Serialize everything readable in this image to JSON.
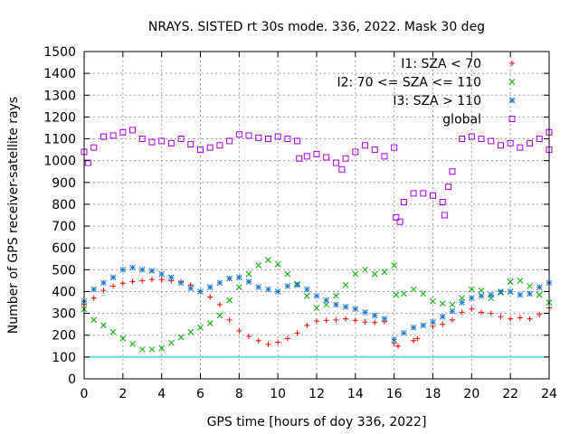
{
  "chart_data": {
    "type": "scatter",
    "title": "NRAYS. SISTED rt 30s mode. 336, 2022. Mask 30 deg",
    "xlabel": "GPS time [hours of doy 336, 2022]",
    "ylabel": "Number of GPS receiver-satellite rays",
    "xlim": [
      0,
      24
    ],
    "ylim": [
      0,
      1500
    ],
    "x_ticks": [
      0,
      2,
      4,
      6,
      8,
      10,
      12,
      14,
      16,
      18,
      20,
      22,
      24
    ],
    "y_ticks": [
      0,
      100,
      200,
      300,
      400,
      500,
      600,
      700,
      800,
      900,
      1000,
      1100,
      1200,
      1300,
      1400,
      1500
    ],
    "grid": true,
    "legend_position": "top-right",
    "reference_line": {
      "y": 100,
      "color": "#00c8c8"
    },
    "series": [
      {
        "name": "I1: SZA < 70",
        "marker": "+",
        "color": "#ff0000",
        "points": [
          [
            0,
            340
          ],
          [
            0.5,
            370
          ],
          [
            1,
            405
          ],
          [
            1.5,
            425
          ],
          [
            2,
            438
          ],
          [
            2.5,
            445
          ],
          [
            3,
            450
          ],
          [
            3.5,
            455
          ],
          [
            4,
            455
          ],
          [
            4.5,
            450
          ],
          [
            5,
            445
          ],
          [
            5.5,
            430
          ],
          [
            6,
            400
          ],
          [
            6.5,
            375
          ],
          [
            7,
            340
          ],
          [
            7.5,
            270
          ],
          [
            8,
            220
          ],
          [
            8.5,
            195
          ],
          [
            9,
            175
          ],
          [
            9.5,
            158
          ],
          [
            10,
            168
          ],
          [
            10.5,
            185
          ],
          [
            11,
            210
          ],
          [
            11.5,
            245
          ],
          [
            12,
            265
          ],
          [
            12.5,
            268
          ],
          [
            13,
            270
          ],
          [
            13.5,
            275
          ],
          [
            14,
            268
          ],
          [
            14.5,
            260
          ],
          [
            15,
            258
          ],
          [
            15.5,
            262
          ],
          [
            16,
            165
          ],
          [
            16.2,
            150
          ],
          [
            17,
            175
          ],
          [
            17.2,
            185
          ],
          [
            18,
            240
          ],
          [
            18.5,
            250
          ],
          [
            19,
            270
          ],
          [
            19.5,
            305
          ],
          [
            20,
            320
          ],
          [
            20.5,
            305
          ],
          [
            21,
            300
          ],
          [
            21.5,
            285
          ],
          [
            22,
            275
          ],
          [
            22.5,
            280
          ],
          [
            23,
            275
          ],
          [
            23.5,
            295
          ],
          [
            24,
            325
          ]
        ]
      },
      {
        "name": "I2: 70 <= SZA <= 110",
        "marker": "x",
        "color": "#00aa00",
        "points": [
          [
            0,
            320
          ],
          [
            0.5,
            270
          ],
          [
            1,
            245
          ],
          [
            1.5,
            215
          ],
          [
            2,
            185
          ],
          [
            2.5,
            160
          ],
          [
            3,
            135
          ],
          [
            3.5,
            135
          ],
          [
            4,
            140
          ],
          [
            4.5,
            165
          ],
          [
            5,
            190
          ],
          [
            5.5,
            215
          ],
          [
            6,
            235
          ],
          [
            6.5,
            255
          ],
          [
            7,
            290
          ],
          [
            7.5,
            360
          ],
          [
            8,
            420
          ],
          [
            8.5,
            480
          ],
          [
            9,
            520
          ],
          [
            9.5,
            545
          ],
          [
            10,
            525
          ],
          [
            10.5,
            480
          ],
          [
            11,
            435
          ],
          [
            11.5,
            380
          ],
          [
            12,
            325
          ],
          [
            12.5,
            340
          ],
          [
            13,
            380
          ],
          [
            13.5,
            430
          ],
          [
            14,
            480
          ],
          [
            14.5,
            500
          ],
          [
            15,
            480
          ],
          [
            15.5,
            490
          ],
          [
            16,
            520
          ],
          [
            16.1,
            385
          ],
          [
            16.5,
            390
          ],
          [
            17,
            410
          ],
          [
            17.5,
            390
          ],
          [
            18,
            355
          ],
          [
            18.5,
            345
          ],
          [
            19,
            340
          ],
          [
            19.5,
            370
          ],
          [
            20,
            410
          ],
          [
            20.5,
            405
          ],
          [
            21,
            370
          ],
          [
            21.5,
            395
          ],
          [
            22,
            445
          ],
          [
            22.5,
            450
          ],
          [
            23,
            425
          ],
          [
            23.5,
            385
          ],
          [
            24,
            350
          ]
        ]
      },
      {
        "name": "I3: SZA > 110",
        "marker": "*",
        "color": "#1e78c8",
        "points": [
          [
            0,
            355
          ],
          [
            0.5,
            410
          ],
          [
            1,
            440
          ],
          [
            1.5,
            465
          ],
          [
            2,
            500
          ],
          [
            2.5,
            510
          ],
          [
            3,
            500
          ],
          [
            3.5,
            495
          ],
          [
            4,
            480
          ],
          [
            4.5,
            465
          ],
          [
            5,
            440
          ],
          [
            5.5,
            415
          ],
          [
            6,
            400
          ],
          [
            6.5,
            420
          ],
          [
            7,
            440
          ],
          [
            7.5,
            460
          ],
          [
            8,
            465
          ],
          [
            8.5,
            445
          ],
          [
            9,
            420
          ],
          [
            9.5,
            410
          ],
          [
            10,
            400
          ],
          [
            10.5,
            425
          ],
          [
            11,
            430
          ],
          [
            11.5,
            410
          ],
          [
            12,
            380
          ],
          [
            12.5,
            360
          ],
          [
            13,
            340
          ],
          [
            13.5,
            330
          ],
          [
            14,
            320
          ],
          [
            14.5,
            305
          ],
          [
            15,
            290
          ],
          [
            15.5,
            275
          ],
          [
            16,
            180
          ],
          [
            16.5,
            210
          ],
          [
            17,
            235
          ],
          [
            17.5,
            245
          ],
          [
            18,
            260
          ],
          [
            18.5,
            285
          ],
          [
            19,
            310
          ],
          [
            19.5,
            350
          ],
          [
            20,
            370
          ],
          [
            20.5,
            380
          ],
          [
            21,
            385
          ],
          [
            21.5,
            400
          ],
          [
            22,
            400
          ],
          [
            22.5,
            385
          ],
          [
            23,
            390
          ],
          [
            23.5,
            420
          ],
          [
            24,
            440
          ]
        ]
      },
      {
        "name": "global",
        "marker": "square",
        "color": "#aa00ee",
        "points": [
          [
            0,
            1040
          ],
          [
            0.2,
            990
          ],
          [
            0.5,
            1060
          ],
          [
            1,
            1110
          ],
          [
            1.5,
            1115
          ],
          [
            2,
            1130
          ],
          [
            2.5,
            1140
          ],
          [
            3,
            1100
          ],
          [
            3.5,
            1085
          ],
          [
            4,
            1090
          ],
          [
            4.5,
            1080
          ],
          [
            5,
            1100
          ],
          [
            5.5,
            1075
          ],
          [
            6,
            1050
          ],
          [
            6.5,
            1060
          ],
          [
            7,
            1070
          ],
          [
            7.5,
            1090
          ],
          [
            8,
            1120
          ],
          [
            8.5,
            1115
          ],
          [
            9,
            1105
          ],
          [
            9.5,
            1100
          ],
          [
            10,
            1110
          ],
          [
            10.5,
            1100
          ],
          [
            11,
            1090
          ],
          [
            11.1,
            1010
          ],
          [
            11.5,
            1020
          ],
          [
            12,
            1030
          ],
          [
            12.5,
            1015
          ],
          [
            13,
            990
          ],
          [
            13.3,
            960
          ],
          [
            13.5,
            1010
          ],
          [
            14,
            1040
          ],
          [
            14.5,
            1070
          ],
          [
            15,
            1050
          ],
          [
            15.5,
            1020
          ],
          [
            16,
            1060
          ],
          [
            16.1,
            740
          ],
          [
            16.3,
            720
          ],
          [
            16.5,
            810
          ],
          [
            17,
            850
          ],
          [
            17.5,
            850
          ],
          [
            18,
            840
          ],
          [
            18.5,
            810
          ],
          [
            18.6,
            750
          ],
          [
            18.8,
            880
          ],
          [
            19,
            950
          ],
          [
            19.5,
            1100
          ],
          [
            20,
            1110
          ],
          [
            20.5,
            1100
          ],
          [
            21,
            1090
          ],
          [
            21.5,
            1070
          ],
          [
            22,
            1080
          ],
          [
            22.5,
            1060
          ],
          [
            23,
            1080
          ],
          [
            23.5,
            1100
          ],
          [
            24,
            1130
          ],
          [
            24,
            1050
          ]
        ]
      }
    ]
  }
}
